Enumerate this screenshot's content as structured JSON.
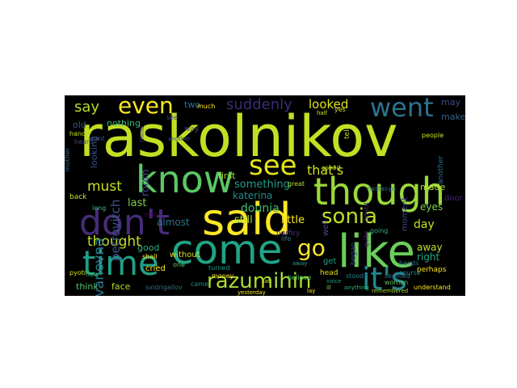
{
  "wordcloud": {
    "background": "#000000",
    "colormap": "viridis",
    "words": [
      {
        "text": "raskolnikov",
        "color": "#c2df23"
      },
      {
        "text": "said",
        "color": "#fde725"
      },
      {
        "text": "like",
        "color": "#6ccd5a"
      },
      {
        "text": "know",
        "color": "#5cc863"
      },
      {
        "text": "come",
        "color": "#20a386"
      },
      {
        "text": "though",
        "color": "#9bd93c"
      },
      {
        "text": "time",
        "color": "#1fa187"
      },
      {
        "text": "don't",
        "color": "#472c7a"
      },
      {
        "text": "it's",
        "color": "#24868e"
      },
      {
        "text": "see",
        "color": "#e5e419"
      },
      {
        "text": "went",
        "color": "#2c728e"
      },
      {
        "text": "even",
        "color": "#fde725"
      },
      {
        "text": "sonia",
        "color": "#c2df23"
      },
      {
        "text": "razumihin",
        "color": "#a8db34"
      },
      {
        "text": "go",
        "color": "#fde725"
      },
      {
        "text": "say",
        "color": "#b8de29"
      },
      {
        "text": "suddenly",
        "color": "#3b2c78"
      },
      {
        "text": "looked",
        "color": "#dde318"
      },
      {
        "text": "must",
        "color": "#c8e020"
      },
      {
        "text": "thought",
        "color": "#c2df23"
      },
      {
        "text": "that's",
        "color": "#d2e21b"
      },
      {
        "text": "dounia",
        "color": "#3dbc74"
      },
      {
        "text": "ivanovna",
        "color": "#2a788e"
      },
      {
        "text": "petrovitch",
        "color": "#3b528b"
      },
      {
        "text": "room",
        "color": "#414487"
      },
      {
        "text": "still",
        "color": "#9fda3a"
      },
      {
        "text": "something",
        "color": "#1f9e89"
      },
      {
        "text": "little",
        "color": "#fde725"
      },
      {
        "text": "katerina",
        "color": "#238a8d"
      },
      {
        "text": "last",
        "color": "#7ad151"
      },
      {
        "text": "almost",
        "color": "#2c728e"
      },
      {
        "text": "day",
        "color": "#c8e020"
      },
      {
        "text": "eyes",
        "color": "#7ad151"
      },
      {
        "text": "right",
        "color": "#22a884"
      },
      {
        "text": "away",
        "color": "#c2df23"
      },
      {
        "text": "made",
        "color": "#b5de2b"
      },
      {
        "text": "may",
        "color": "#3f4a8a"
      },
      {
        "text": "make",
        "color": "#34618d"
      },
      {
        "text": "two",
        "color": "#2e6f8e"
      },
      {
        "text": "first",
        "color": "#a5db36"
      },
      {
        "text": "cried",
        "color": "#fde725"
      },
      {
        "text": "good",
        "color": "#2fb47c"
      },
      {
        "text": "without",
        "color": "#d8e219"
      },
      {
        "text": "door",
        "color": "#482576"
      },
      {
        "text": "moment",
        "color": "#3e4a89"
      },
      {
        "text": "began",
        "color": "#414487"
      },
      {
        "text": "another",
        "color": "#2f6c8e"
      },
      {
        "text": "perhaps",
        "color": "#fde725"
      },
      {
        "text": "old",
        "color": "#39558c"
      },
      {
        "text": "nothing",
        "color": "#35b779"
      },
      {
        "text": "way",
        "color": "#3e4c8a"
      },
      {
        "text": "looking",
        "color": "#3b528b"
      },
      {
        "text": "think",
        "color": "#52c569"
      },
      {
        "text": "face",
        "color": "#b5de2b"
      },
      {
        "text": "svidrigailov",
        "color": "#2c728e"
      },
      {
        "text": "came",
        "color": "#21918c"
      },
      {
        "text": "get",
        "color": "#1fa088"
      },
      {
        "text": "asked",
        "color": "#bddf26"
      },
      {
        "text": "head",
        "color": "#e2e418"
      },
      {
        "text": "quite",
        "color": "#482878"
      },
      {
        "text": "back",
        "color": "#c5e021"
      },
      {
        "text": "much",
        "color": "#fde725"
      },
      {
        "text": "people",
        "color": "#d0e11c"
      },
      {
        "text": "tell",
        "color": "#c0df25"
      },
      {
        "text": "well",
        "color": "#3e4989"
      },
      {
        "text": "course",
        "color": "#23898e"
      },
      {
        "text": "hands",
        "color": "#2d708e"
      },
      {
        "text": "woman",
        "color": "#5ec962"
      },
      {
        "text": "seemed",
        "color": "#2b748e"
      },
      {
        "text": "understand",
        "color": "#fde725"
      },
      {
        "text": "pyotr",
        "color": "#d5e21a"
      },
      {
        "text": "shall",
        "color": "#fbe723"
      },
      {
        "text": "porfiry",
        "color": "#46307e"
      },
      {
        "text": "mind",
        "color": "#472d7b"
      },
      {
        "text": "great",
        "color": "#bade28"
      },
      {
        "text": "heard",
        "color": "#3f4889"
      },
      {
        "text": "mother",
        "color": "#31688e"
      },
      {
        "text": "stood",
        "color": "#25858e"
      },
      {
        "text": "going",
        "color": "#34b679"
      },
      {
        "text": "long",
        "color": "#3dbc74"
      },
      {
        "text": "turned",
        "color": "#1f998a"
      },
      {
        "text": "yes",
        "color": "#ccdf21"
      },
      {
        "text": "man",
        "color": "#440154"
      },
      {
        "text": "one",
        "color": "#5cc863"
      },
      {
        "text": "see",
        "color": "#3f4889"
      },
      {
        "text": "nastasya",
        "color": "#2d708e"
      },
      {
        "text": "money",
        "color": "#fde725"
      },
      {
        "text": "hand",
        "color": "#c8e020"
      },
      {
        "text": "believe",
        "color": "#5ec962"
      },
      {
        "text": "life",
        "color": "#287d8e"
      },
      {
        "text": "yesterday",
        "color": "#fde725"
      },
      {
        "text": "anything",
        "color": "#2fb47c"
      },
      {
        "text": "now",
        "color": "#44bf70"
      },
      {
        "text": "want",
        "color": "#3b528b"
      },
      {
        "text": "away",
        "color": "#1fa188"
      },
      {
        "text": "ill",
        "color": "#7ad151"
      },
      {
        "text": "lay",
        "color": "#fde725"
      },
      {
        "text": "remembered",
        "color": "#a2da37"
      },
      {
        "text": "dmitri",
        "color": "#46337f"
      },
      {
        "text": "another",
        "color": "#3b528b"
      },
      {
        "text": "voice",
        "color": "#20a386"
      },
      {
        "text": "half",
        "color": "#d2e21b"
      },
      {
        "text": "sat",
        "color": "#d2e21b"
      }
    ]
  }
}
